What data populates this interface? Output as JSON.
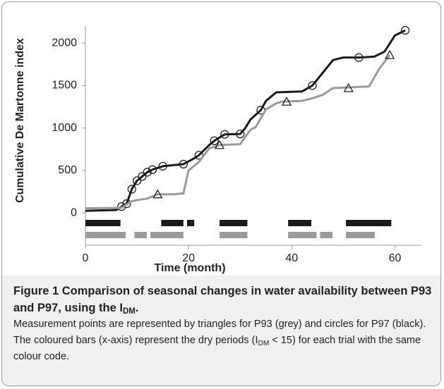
{
  "chart_data": {
    "type": "line",
    "x_label": "Time (month)",
    "y_label": "Cumulative De Martonne index",
    "xlim": [
      0,
      65
    ],
    "xticks": [
      0,
      20,
      40,
      60
    ],
    "ylim": [
      -380,
      2200
    ],
    "yticks": [
      0,
      500,
      1000,
      1500,
      2000
    ],
    "series": [
      {
        "color": "#1a1a1a",
        "marker": "circle",
        "x": [
          0,
          6,
          7,
          8,
          9,
          10,
          11,
          12,
          13,
          15,
          19,
          21,
          22,
          24,
          25,
          27,
          30,
          31,
          32,
          34,
          35,
          37,
          42,
          44,
          46,
          48,
          50,
          53,
          56,
          58,
          60,
          62
        ],
        "values": [
          25,
          35,
          75,
          110,
          280,
          380,
          430,
          480,
          510,
          550,
          575,
          640,
          680,
          800,
          850,
          925,
          930,
          1000,
          1100,
          1210,
          1320,
          1420,
          1430,
          1500,
          1650,
          1800,
          1830,
          1830,
          1840,
          1900,
          2090,
          2150
        ],
        "marker_x": [
          7,
          8,
          9,
          10,
          11,
          12,
          13,
          15,
          19,
          22,
          25,
          27,
          30,
          34,
          44,
          53,
          62
        ],
        "marker_values": [
          75,
          110,
          280,
          380,
          430,
          480,
          510,
          550,
          575,
          680,
          850,
          925,
          930,
          1210,
          1500,
          1830,
          2150
        ],
        "dry_periods": [
          [
            0,
            6.8
          ],
          [
            14.7,
            19
          ],
          [
            19.7,
            21.1
          ],
          [
            26,
            31.4
          ],
          [
            39.3,
            43.8
          ],
          [
            50.5,
            59.3
          ]
        ]
      },
      {
        "color": "#9a9a9a",
        "marker": "triangle",
        "x": [
          0,
          7,
          9,
          12,
          14,
          17,
          19,
          20,
          22,
          24,
          26,
          30,
          32,
          33,
          35,
          37,
          38,
          42,
          44,
          46,
          48,
          52,
          55,
          57,
          59
        ],
        "values": [
          55,
          60,
          140,
          170,
          220,
          220,
          230,
          500,
          600,
          760,
          800,
          810,
          980,
          1010,
          1220,
          1290,
          1310,
          1320,
          1350,
          1390,
          1470,
          1480,
          1490,
          1700,
          1860
        ],
        "marker_x": [
          14,
          26,
          39,
          51,
          59
        ],
        "marker_values": [
          220,
          800,
          1310,
          1470,
          1860
        ],
        "dry_periods": [
          [
            0,
            7.8
          ],
          [
            9.5,
            11.9
          ],
          [
            12.6,
            19
          ],
          [
            26,
            31.4
          ],
          [
            39.3,
            44.8
          ],
          [
            45.5,
            47.9
          ],
          [
            50.5,
            56.1
          ]
        ]
      }
    ]
  },
  "caption": {
    "title_parts": [
      "Figure 1 Comparison of seasonal changes in water availability between P93 and P97, using the I",
      "DM",
      "."
    ],
    "body_parts": [
      "Measurement points are represented by triangles for P93 (grey) and circles for P97 (black). The coloured bars (x-axis) represent the dry periods (I",
      "DM",
      " < 15) for each trial with the same colour code."
    ]
  }
}
